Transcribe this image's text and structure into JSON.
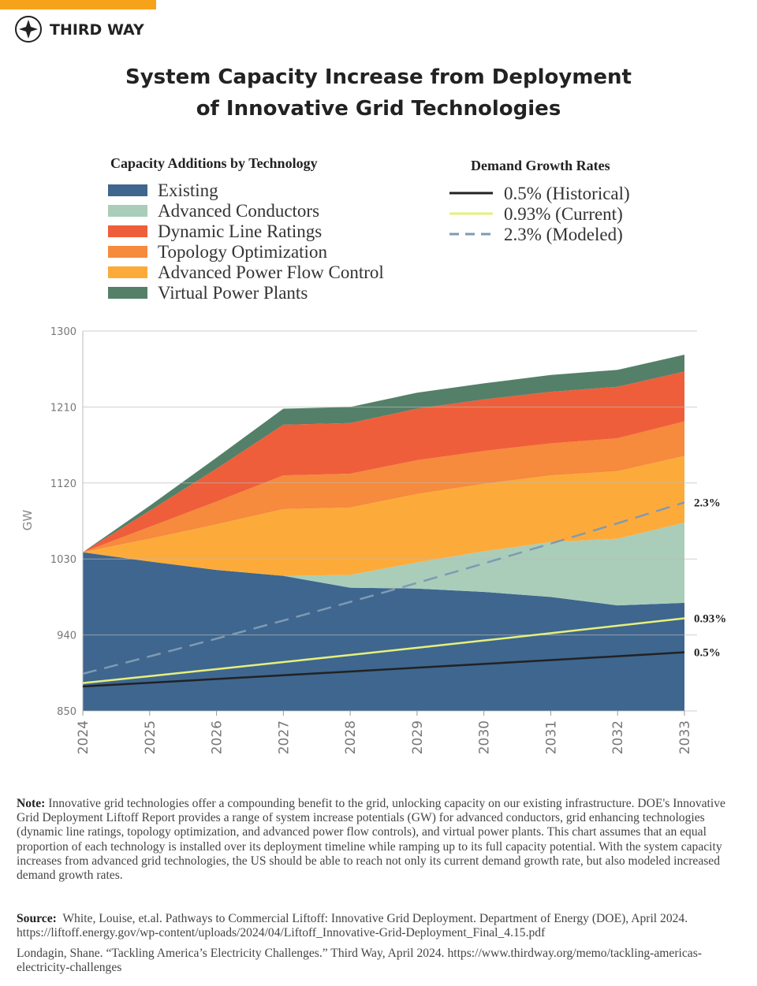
{
  "brand": "THIRD WAY",
  "chart_data": {
    "type": "area",
    "title": "System Capacity Increase from Deployment\nof Innovative Grid Technologies",
    "y_label": "GW",
    "area_legend_title": "Capacity Additions by Technology",
    "line_legend_title": "Demand Growth Rates",
    "categories": [
      "2024",
      "2025",
      "2026",
      "2027",
      "2028",
      "2029",
      "2030",
      "2031",
      "2032",
      "2033"
    ],
    "ylim": [
      850,
      1300
    ],
    "yticks": [
      850,
      940,
      1030,
      1120,
      1210,
      1300
    ],
    "grid": true,
    "stack_order": [
      0,
      1,
      4,
      3,
      2,
      5
    ],
    "area_series": [
      {
        "name": "Existing",
        "color": "#3e668f",
        "values": [
          1038,
          1027,
          1017,
          1010,
          996,
          995,
          991,
          985,
          975,
          978
        ]
      },
      {
        "name": "Advanced Conductors",
        "color": "#a9cdb9",
        "values": [
          0,
          0,
          0,
          0,
          15,
          31,
          48,
          65,
          79,
          95
        ]
      },
      {
        "name": "Dynamic Line Ratings",
        "color": "#ef5e3a",
        "values": [
          0,
          19,
          39,
          60,
          60,
          61,
          61,
          61,
          61,
          59
        ]
      },
      {
        "name": "Topology Optimization",
        "color": "#f68a3d",
        "values": [
          0,
          14,
          27,
          40,
          40,
          40,
          39,
          38,
          39,
          41
        ]
      },
      {
        "name": "Advanced Power Flow Control",
        "color": "#fcab3b",
        "values": [
          0,
          27,
          54,
          79,
          80,
          81,
          80,
          79,
          80,
          79
        ]
      },
      {
        "name": "Virtual Power Plants",
        "color": "#548069",
        "values": [
          0,
          6,
          13,
          19,
          19,
          19,
          19,
          20,
          20,
          20
        ]
      }
    ],
    "line_series": [
      {
        "name": "0.5% (Historical)",
        "end_label": "0.5%",
        "color": "#222222",
        "dashed": false,
        "values": [
          879,
          883.4,
          887.8,
          892.3,
          896.7,
          901.2,
          905.7,
          910.2,
          914.8,
          919.4
        ]
      },
      {
        "name": "0.93% (Current)",
        "end_label": "0.93%",
        "color": "#e6f07a",
        "dashed": false,
        "values": [
          883,
          891.2,
          899.5,
          907.9,
          916.3,
          924.8,
          933.4,
          942.1,
          950.9,
          959.7
        ]
      },
      {
        "name": "2.3% (Modeled)",
        "end_label": "2.3%",
        "color": "#7f9ab3",
        "dashed": true,
        "values": [
          894,
          914.6,
          935.6,
          957.1,
          979.1,
          1001.6,
          1024.7,
          1048.2,
          1072.3,
          1097.0
        ]
      }
    ]
  },
  "note_label": "Note:",
  "note": "Innovative grid technologies offer a compounding benefit to the grid, unlocking capacity on our existing infrastructure. DOE's Innovative Grid Deployment Liftoff Report provides a range of system increase potentials (GW) for advanced conductors, grid enhancing technologies (dynamic line ratings, topology optimization, and advanced power flow controls), and virtual power plants. This chart assumes that an equal proportion of each technology is installed over its deployment timeline while ramping up to its full capacity potential. With the system capacity increases from advanced grid technologies, the US should be able to reach not only its current demand growth rate, but also modeled increased demand growth rates.",
  "source_label": "Source:",
  "sources": [
    "White, Louise, et.al. Pathways to Commercial Liftoff: Innovative Grid Deployment. Department of Energy (DOE), April 2024. https://liftoff.energy.gov/wp-content/uploads/2024/04/Liftoff_Innovative-Grid-Deployment_Final_4.15.pdf",
    "Londagin, Shane. “Tackling America’s Electricity Challenges.” Third Way, April 2024. https://www.thirdway.org/memo/tackling-americas-electricity-challenges"
  ]
}
